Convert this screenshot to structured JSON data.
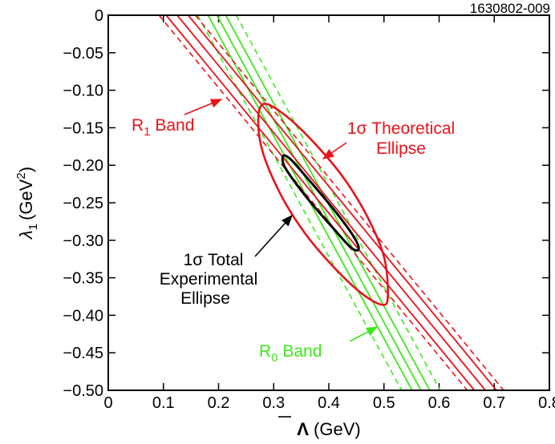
{
  "chart_data": {
    "type": "line",
    "figure_id": "1630802-009",
    "xlabel": "Λ (GeV)",
    "xlabel_symbol": "Λ",
    "xlabel_unit": " (GeV)",
    "ylabel_symbol": "λ",
    "ylabel_sub": "1",
    "ylabel_unit_pre": "(GeV",
    "ylabel_unit_sup": "2",
    "ylabel_unit_post": ")",
    "xlim": [
      0,
      0.8
    ],
    "ylim": [
      -0.5,
      0
    ],
    "x_ticks": [
      0,
      0.1,
      0.2,
      0.3,
      0.4,
      0.5,
      0.6,
      0.7,
      0.8
    ],
    "x_tick_labels": [
      "0",
      "0.1",
      "0.2",
      "0.3",
      "0.4",
      "0.5",
      "0.6",
      "0.7",
      "0.8"
    ],
    "y_ticks": [
      0,
      -0.05,
      -0.1,
      -0.15,
      -0.2,
      -0.25,
      -0.3,
      -0.35,
      -0.4,
      -0.45,
      -0.5
    ],
    "y_tick_labels": [
      "0",
      "−0.05",
      "−0.10",
      "−0.15",
      "−0.20",
      "−0.25",
      "−0.30",
      "−0.35",
      "−0.40",
      "−0.45",
      "−0.50"
    ],
    "colors": {
      "r1": "#e8131b",
      "r0": "#3ee81c",
      "exp": "#000000"
    },
    "r1_band": {
      "name": "R1 Band",
      "label_main": "R",
      "label_sub": "1",
      "label_rest": " Band",
      "central": [
        [
          0.125,
          0
        ],
        [
          0.684,
          -0.5
        ]
      ],
      "solid_lines": [
        [
          [
            0.105,
            0
          ],
          [
            0.664,
            -0.5
          ]
        ],
        [
          [
            0.145,
            0
          ],
          [
            0.704,
            -0.5
          ]
        ]
      ],
      "dashed_lines": [
        [
          [
            0.092,
            0
          ],
          [
            0.651,
            -0.5
          ]
        ],
        [
          [
            0.158,
            0
          ],
          [
            0.717,
            -0.5
          ]
        ]
      ]
    },
    "r0_band": {
      "name": "R0 Band",
      "label_main": "R",
      "label_sub": "0",
      "label_rest": " Band",
      "central": [
        [
          0.197,
          0
        ],
        [
          0.567,
          -0.5
        ]
      ],
      "solid_lines": [
        [
          [
            0.181,
            0
          ],
          [
            0.551,
            -0.5
          ]
        ],
        [
          [
            0.213,
            0
          ],
          [
            0.583,
            -0.5
          ]
        ]
      ],
      "dashed_lines": [
        [
          [
            0.162,
            0
          ],
          [
            0.532,
            -0.5
          ]
        ],
        [
          [
            0.232,
            0
          ],
          [
            0.602,
            -0.5
          ]
        ]
      ]
    },
    "theoretical_ellipse": {
      "label_line1": "1σ Theoretical",
      "label_line2": "Ellipse",
      "center": [
        0.39,
        -0.252
      ],
      "points": [
        [
          0.283,
          -0.118
        ],
        [
          0.322,
          -0.134
        ],
        [
          0.372,
          -0.169
        ],
        [
          0.424,
          -0.214
        ],
        [
          0.468,
          -0.266
        ],
        [
          0.5,
          -0.322
        ],
        [
          0.507,
          -0.374
        ],
        [
          0.497,
          -0.386
        ],
        [
          0.458,
          -0.37
        ],
        [
          0.408,
          -0.335
        ],
        [
          0.356,
          -0.29
        ],
        [
          0.312,
          -0.238
        ],
        [
          0.28,
          -0.182
        ],
        [
          0.272,
          -0.138
        ]
      ]
    },
    "experimental_ellipse": {
      "label_line1": "1σ Total",
      "label_line2": "Experimental",
      "label_line3": "Ellipse",
      "center": [
        0.385,
        -0.25
      ],
      "points": [
        [
          0.318,
          -0.187
        ],
        [
          0.332,
          -0.193
        ],
        [
          0.362,
          -0.218
        ],
        [
          0.398,
          -0.249
        ],
        [
          0.432,
          -0.281
        ],
        [
          0.451,
          -0.303
        ],
        [
          0.453,
          -0.313
        ],
        [
          0.439,
          -0.309
        ],
        [
          0.408,
          -0.284
        ],
        [
          0.37,
          -0.252
        ],
        [
          0.337,
          -0.221
        ],
        [
          0.318,
          -0.199
        ]
      ]
    }
  }
}
